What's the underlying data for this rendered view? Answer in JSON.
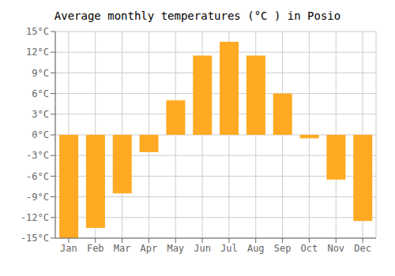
{
  "chart_data": {
    "type": "bar",
    "title": "Average monthly temperatures (°C ) in Posio",
    "categories": [
      "Jan",
      "Feb",
      "Mar",
      "Apr",
      "May",
      "Jun",
      "Jul",
      "Aug",
      "Sep",
      "Oct",
      "Nov",
      "Dec"
    ],
    "values": [
      -15,
      -13.5,
      -8.5,
      -2.5,
      5,
      11.5,
      13.5,
      11.5,
      6,
      -0.5,
      -6.5,
      -12.5
    ],
    "color": "#FFAA22",
    "ylim": [
      -15,
      15
    ],
    "yticks": [
      {
        "value": -15,
        "label": "-15°C"
      },
      {
        "value": -12,
        "label": "-12°C"
      },
      {
        "value": -9,
        "label": "-9°C"
      },
      {
        "value": -6,
        "label": "-6°C"
      },
      {
        "value": -3,
        "label": "-3°C"
      },
      {
        "value": 0,
        "label": "0°C"
      },
      {
        "value": 3,
        "label": "3°C"
      },
      {
        "value": 6,
        "label": "6°C"
      },
      {
        "value": 9,
        "label": "9°C"
      },
      {
        "value": 12,
        "label": "12°C"
      },
      {
        "value": 15,
        "label": "15°C"
      }
    ],
    "grid": true
  }
}
